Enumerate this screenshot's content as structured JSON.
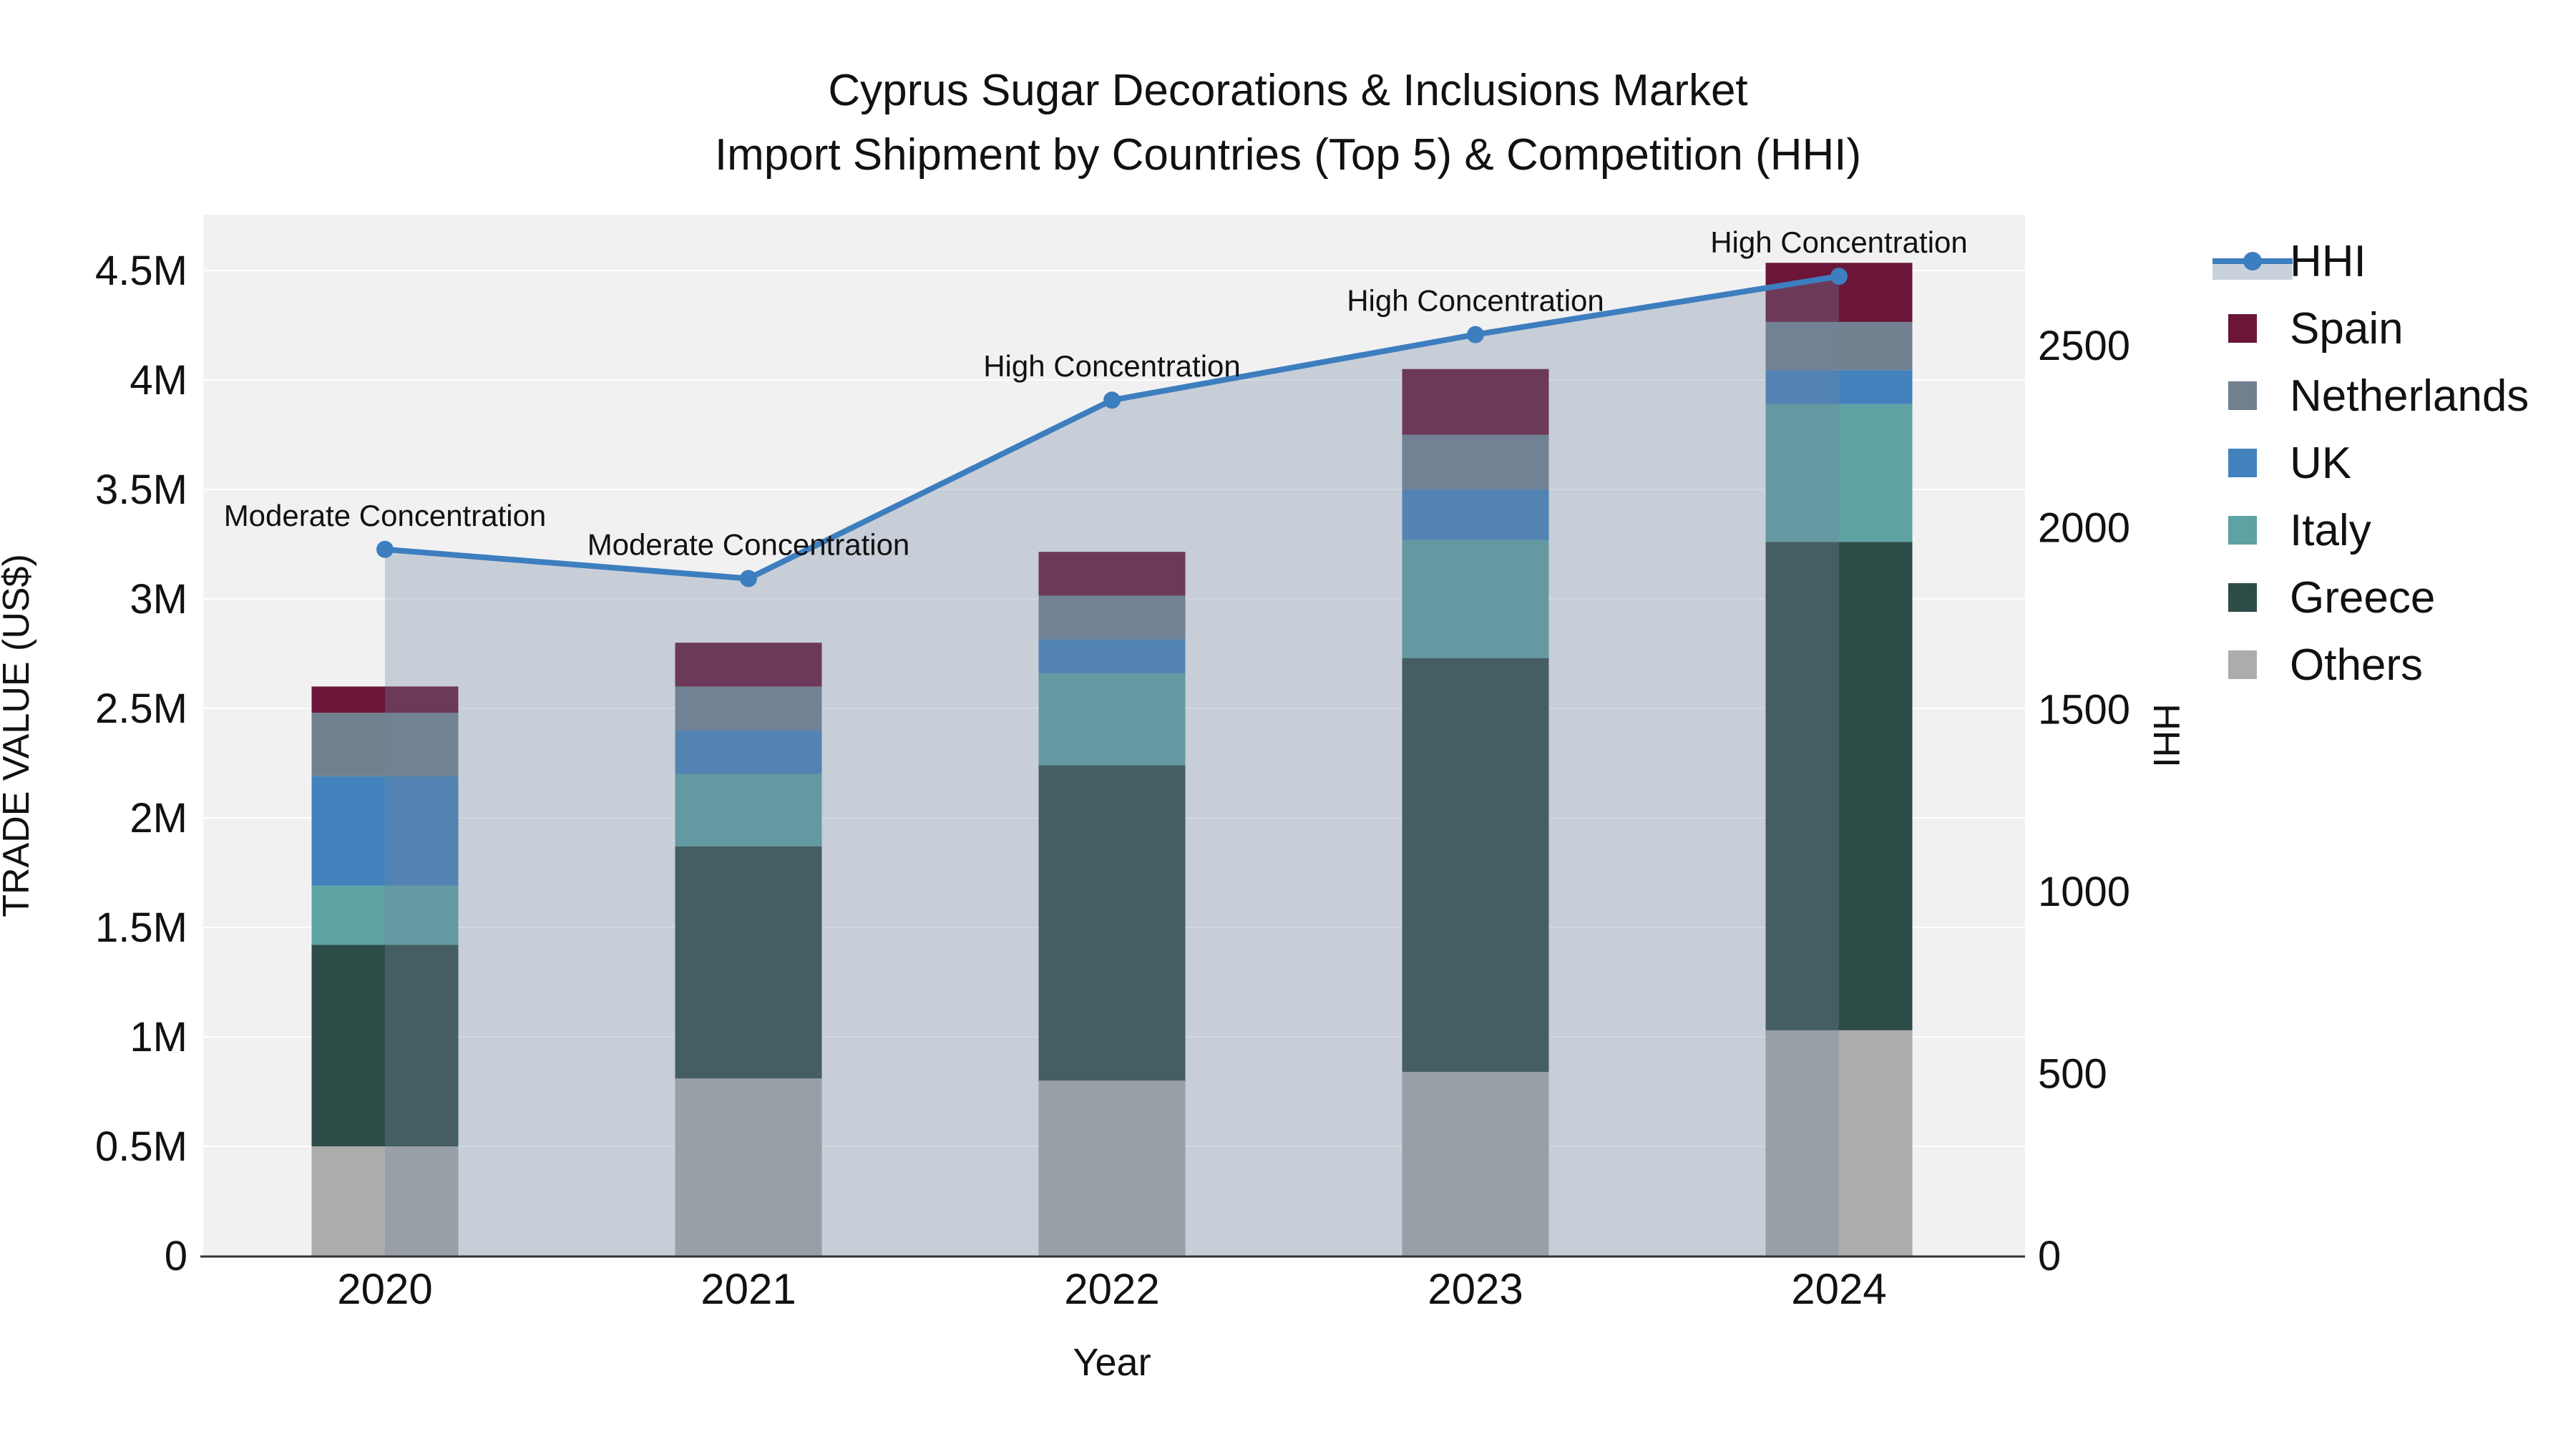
{
  "title": {
    "line1": "Cyprus Sugar Decorations & Inclusions Market",
    "line2": "Import Shipment by Countries (Top 5) & Competition (HHI)"
  },
  "chart_data": {
    "type": "bar+line",
    "categories": [
      "2020",
      "2021",
      "2022",
      "2023",
      "2024"
    ],
    "bar_series": [
      {
        "name": "Others",
        "values": [
          0.5,
          0.81,
          0.8,
          0.84,
          1.03
        ]
      },
      {
        "name": "Greece",
        "values": [
          0.92,
          1.06,
          1.44,
          1.89,
          2.23
        ]
      },
      {
        "name": "Italy",
        "values": [
          0.27,
          0.33,
          0.42,
          0.54,
          0.63
        ]
      },
      {
        "name": "UK",
        "values": [
          0.5,
          0.2,
          0.155,
          0.23,
          0.155
        ]
      },
      {
        "name": "Netherlands",
        "values": [
          0.29,
          0.2,
          0.2,
          0.25,
          0.22
        ]
      },
      {
        "name": "Spain",
        "values": [
          0.12,
          0.2,
          0.2,
          0.3,
          0.27
        ]
      }
    ],
    "bar_totals_musd": [
      2.6,
      2.8,
      3.215,
      4.05,
      4.535
    ],
    "line_series": {
      "name": "HHI",
      "values": [
        1940,
        1860,
        2350,
        2530,
        2690
      ]
    },
    "annotations": [
      "Moderate Concentration",
      "Moderate Concentration",
      "High Concentration",
      "High Concentration",
      "High Concentration"
    ],
    "colors": {
      "HHI": "#3D7EBF",
      "Spain": "#6B1638",
      "Netherlands": "#71808F",
      "UK": "#4382BC",
      "Italy": "#5FA2A3",
      "Greece": "#2E4C47",
      "Others": "#ACACAA"
    },
    "area_fill": "rgba(114,134,160,0.32)",
    "plot_bg": "#F1F1F2",
    "grid_color": "#FFFFFF",
    "axis_line_color": "#333333",
    "y_left": {
      "title": "TRADE VALUE (US$)",
      "tick_labels": [
        "0",
        "0.5M",
        "1M",
        "1.5M",
        "2M",
        "2.5M",
        "3M",
        "3.5M",
        "4M",
        "4.5M"
      ],
      "tick_values": [
        0,
        0.5,
        1,
        1.5,
        2,
        2.5,
        3,
        3.5,
        4,
        4.5
      ]
    },
    "y_right": {
      "title": "HHI",
      "tick_labels": [
        "0",
        "500",
        "1000",
        "1500",
        "2000",
        "2500"
      ],
      "tick_values": [
        0,
        500,
        1000,
        1500,
        2000,
        2500
      ]
    },
    "x_axis": {
      "title": "Year"
    },
    "legend": [
      "HHI",
      "Spain",
      "Netherlands",
      "UK",
      "Italy",
      "Greece",
      "Others"
    ]
  }
}
